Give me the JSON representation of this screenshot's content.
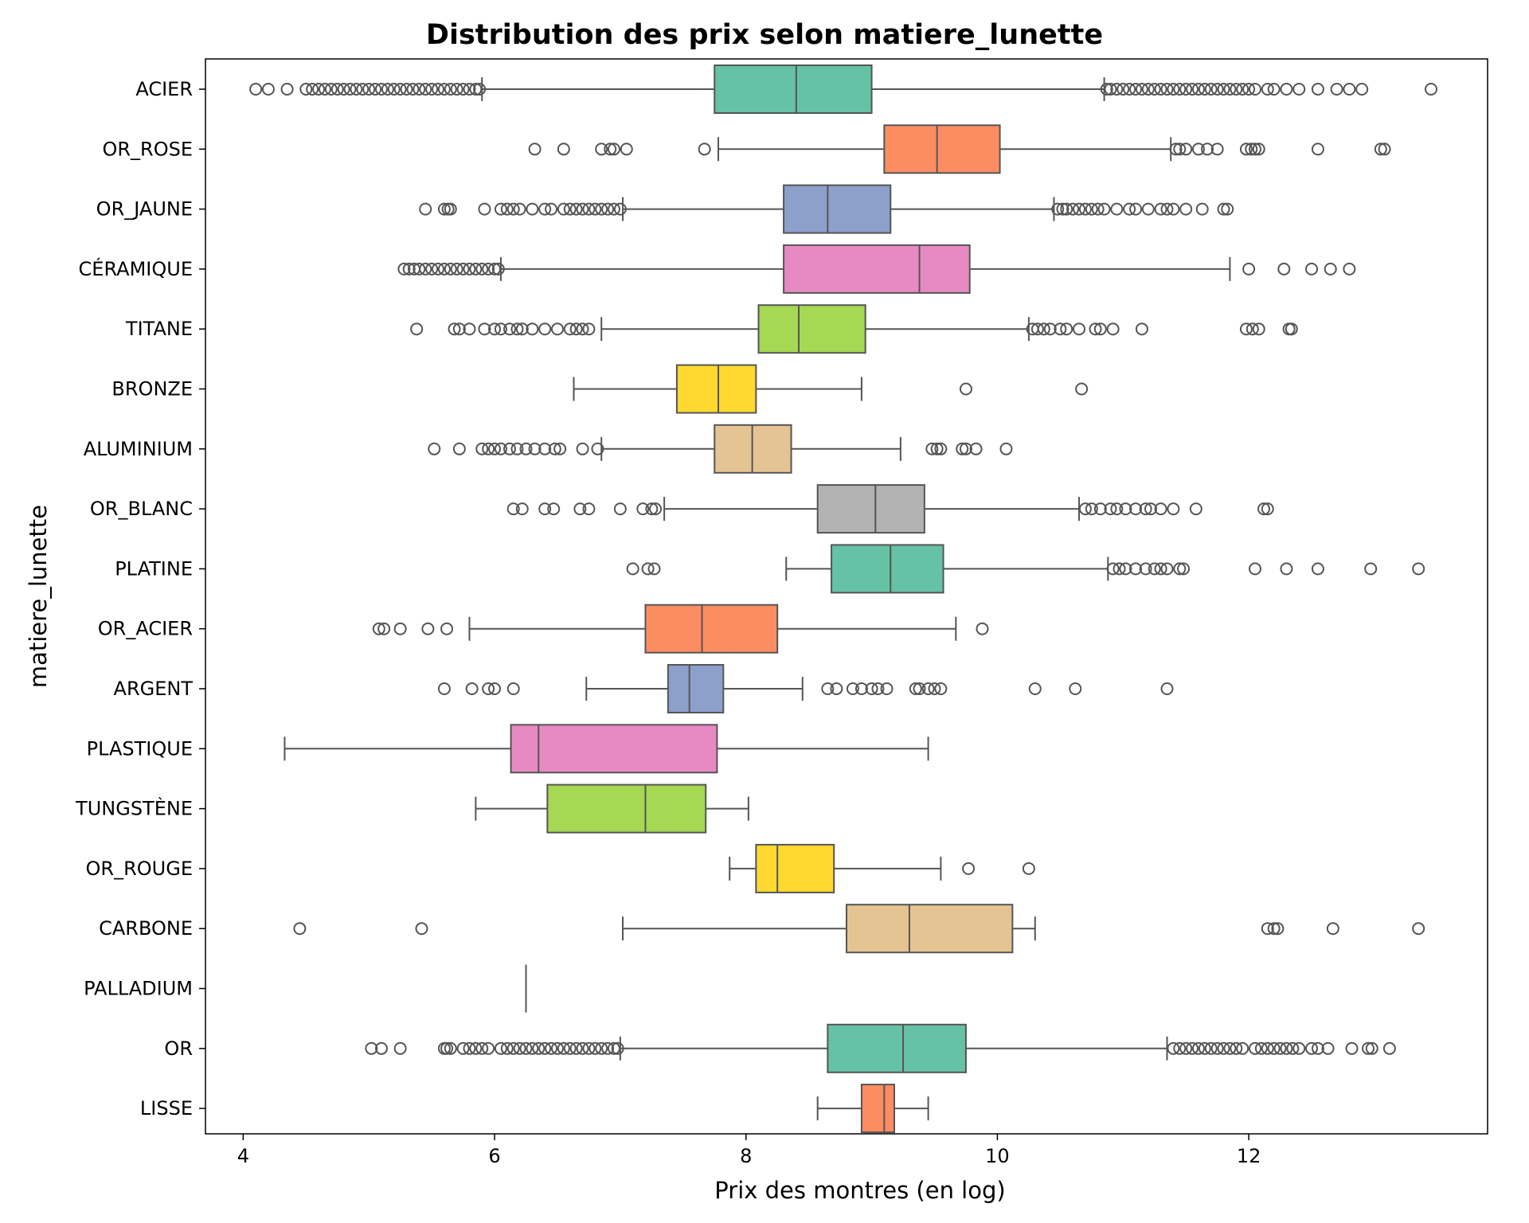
{
  "chart_data": {
    "type": "boxplot",
    "orientation": "horizontal",
    "title": "Distribution des prix selon matiere_lunette",
    "xlabel": "Prix des montres (en log)",
    "ylabel": "matiere_lunette",
    "xlim": [
      3.7,
      13.9
    ],
    "xticks": [
      4,
      6,
      8,
      10,
      12
    ],
    "grid": false,
    "series": [
      {
        "name": "ACIER",
        "color": "#66c2a5",
        "whisker_low": 5.9,
        "q1": 7.75,
        "median": 8.4,
        "q3": 9.0,
        "whisker_high": 10.85,
        "outliers": [
          4.1,
          4.2,
          4.35,
          4.5,
          4.55,
          4.6,
          4.65,
          4.7,
          4.75,
          4.8,
          4.85,
          4.9,
          4.95,
          5.0,
          5.05,
          5.1,
          5.15,
          5.2,
          5.25,
          5.3,
          5.35,
          5.4,
          5.45,
          5.5,
          5.55,
          5.6,
          5.65,
          5.7,
          5.75,
          5.8,
          5.85,
          5.88,
          10.87,
          10.9,
          10.95,
          11.0,
          11.05,
          11.1,
          11.15,
          11.2,
          11.25,
          11.3,
          11.35,
          11.4,
          11.45,
          11.5,
          11.55,
          11.6,
          11.65,
          11.7,
          11.75,
          11.8,
          11.85,
          11.9,
          11.95,
          12.0,
          12.05,
          12.15,
          12.2,
          12.3,
          12.4,
          12.55,
          12.7,
          12.8,
          12.9,
          13.45
        ]
      },
      {
        "name": "OR_ROSE",
        "color": "#fc8d62",
        "whisker_low": 7.78,
        "q1": 9.1,
        "median": 9.52,
        "q3": 10.02,
        "whisker_high": 11.38,
        "outliers": [
          6.32,
          6.55,
          6.85,
          6.92,
          6.95,
          7.05,
          7.67,
          11.42,
          11.45,
          11.5,
          11.6,
          11.67,
          11.75,
          11.98,
          12.02,
          12.05,
          12.08,
          12.55,
          13.05,
          13.08
        ]
      },
      {
        "name": "OR_JAUNE",
        "color": "#8da0cb",
        "whisker_low": 7.02,
        "q1": 8.3,
        "median": 8.65,
        "q3": 9.15,
        "whisker_high": 10.45,
        "outliers": [
          5.45,
          5.6,
          5.63,
          5.65,
          5.92,
          6.05,
          6.1,
          6.15,
          6.2,
          6.3,
          6.4,
          6.45,
          6.55,
          6.6,
          6.65,
          6.7,
          6.75,
          6.8,
          6.85,
          6.9,
          6.95,
          7.0,
          10.48,
          10.52,
          10.55,
          10.6,
          10.65,
          10.7,
          10.75,
          10.8,
          10.85,
          10.95,
          11.05,
          11.1,
          11.2,
          11.3,
          11.35,
          11.4,
          11.5,
          11.63,
          11.8,
          11.83
        ]
      },
      {
        "name": "CÉRAMIQUE",
        "color": "#e78ac3",
        "whisker_low": 6.05,
        "q1": 8.3,
        "median": 9.38,
        "q3": 9.78,
        "whisker_high": 11.85,
        "outliers": [
          5.28,
          5.32,
          5.36,
          5.4,
          5.45,
          5.5,
          5.55,
          5.6,
          5.65,
          5.7,
          5.75,
          5.8,
          5.85,
          5.9,
          5.95,
          6.0,
          6.03,
          12.0,
          12.28,
          12.5,
          12.65,
          12.8
        ]
      },
      {
        "name": "TITANE",
        "color": "#a6d854",
        "whisker_low": 6.85,
        "q1": 8.1,
        "median": 8.42,
        "q3": 8.95,
        "whisker_high": 10.25,
        "outliers": [
          5.38,
          5.68,
          5.72,
          5.8,
          5.92,
          6.0,
          6.05,
          6.12,
          6.18,
          6.22,
          6.3,
          6.4,
          6.5,
          6.6,
          6.65,
          6.7,
          6.75,
          10.28,
          10.32,
          10.37,
          10.42,
          10.5,
          10.55,
          10.65,
          10.78,
          10.82,
          10.92,
          11.15,
          11.98,
          12.03,
          12.08,
          12.32,
          12.34
        ]
      },
      {
        "name": "BRONZE",
        "color": "#ffd92f",
        "whisker_low": 6.63,
        "q1": 7.45,
        "median": 7.78,
        "q3": 8.08,
        "whisker_high": 8.92,
        "outliers": [
          9.75,
          10.67
        ]
      },
      {
        "name": "ALUMINIUM",
        "color": "#e5c494",
        "whisker_low": 6.85,
        "q1": 7.75,
        "median": 8.05,
        "q3": 8.36,
        "whisker_high": 9.23,
        "outliers": [
          5.52,
          5.72,
          5.9,
          5.95,
          6.0,
          6.05,
          6.12,
          6.18,
          6.25,
          6.32,
          6.4,
          6.48,
          6.52,
          6.7,
          6.82,
          9.48,
          9.52,
          9.55,
          9.72,
          9.75,
          9.83,
          10.07
        ]
      },
      {
        "name": "OR_BLANC",
        "color": "#b3b3b3",
        "whisker_low": 7.35,
        "q1": 8.57,
        "median": 9.03,
        "q3": 9.42,
        "whisker_high": 10.65,
        "outliers": [
          6.15,
          6.22,
          6.4,
          6.47,
          6.68,
          6.75,
          7.0,
          7.18,
          7.25,
          7.28,
          10.7,
          10.75,
          10.82,
          10.9,
          10.95,
          11.02,
          11.1,
          11.18,
          11.22,
          11.3,
          11.4,
          11.58,
          12.12,
          12.15
        ]
      },
      {
        "name": "PLATINE",
        "color": "#66c2a5",
        "whisker_low": 8.32,
        "q1": 8.68,
        "median": 9.15,
        "q3": 9.57,
        "whisker_high": 10.88,
        "outliers": [
          7.1,
          7.22,
          7.27,
          10.92,
          10.97,
          11.02,
          11.1,
          11.18,
          11.25,
          11.3,
          11.35,
          11.45,
          11.48,
          12.05,
          12.3,
          12.55,
          12.97,
          13.35
        ]
      },
      {
        "name": "OR_ACIER",
        "color": "#fc8d62",
        "whisker_low": 5.8,
        "q1": 7.2,
        "median": 7.65,
        "q3": 8.25,
        "whisker_high": 9.67,
        "outliers": [
          5.08,
          5.12,
          5.25,
          5.47,
          5.62,
          9.88
        ]
      },
      {
        "name": "ARGENT",
        "color": "#8da0cb",
        "whisker_low": 6.73,
        "q1": 7.38,
        "median": 7.55,
        "q3": 7.82,
        "whisker_high": 8.45,
        "outliers": [
          5.6,
          5.82,
          5.95,
          6.0,
          6.15,
          8.65,
          8.72,
          8.85,
          8.92,
          9.0,
          9.05,
          9.12,
          9.35,
          9.38,
          9.45,
          9.5,
          9.55,
          10.3,
          10.62,
          11.35
        ]
      },
      {
        "name": "PLASTIQUE",
        "color": "#e78ac3",
        "whisker_low": 4.33,
        "q1": 6.13,
        "median": 6.35,
        "q3": 7.77,
        "whisker_high": 9.45,
        "outliers": []
      },
      {
        "name": "TUNGSTÈNE",
        "color": "#a6d854",
        "whisker_low": 5.85,
        "q1": 6.42,
        "median": 7.2,
        "q3": 7.68,
        "whisker_high": 8.02,
        "outliers": []
      },
      {
        "name": "OR_ROUGE",
        "color": "#ffd92f",
        "whisker_low": 7.87,
        "q1": 8.08,
        "median": 8.25,
        "q3": 8.7,
        "whisker_high": 9.55,
        "outliers": [
          9.77,
          10.25
        ]
      },
      {
        "name": "CARBONE",
        "color": "#e5c494",
        "whisker_low": 7.02,
        "q1": 8.8,
        "median": 9.3,
        "q3": 10.12,
        "whisker_high": 10.3,
        "outliers": [
          4.45,
          5.42,
          12.15,
          12.2,
          12.23,
          12.67,
          13.35
        ]
      },
      {
        "name": "PALLADIUM",
        "color": "#b3b3b3",
        "whisker_low": 6.25,
        "q1": 6.25,
        "median": 6.25,
        "q3": 6.25,
        "whisker_high": 6.25,
        "outliers": []
      },
      {
        "name": "OR",
        "color": "#66c2a5",
        "whisker_low": 7.0,
        "q1": 8.65,
        "median": 9.25,
        "q3": 9.75,
        "whisker_high": 11.35,
        "outliers": [
          5.02,
          5.1,
          5.25,
          5.6,
          5.62,
          5.65,
          5.75,
          5.8,
          5.85,
          5.9,
          5.95,
          6.05,
          6.1,
          6.15,
          6.2,
          6.25,
          6.3,
          6.35,
          6.4,
          6.45,
          6.5,
          6.55,
          6.6,
          6.65,
          6.7,
          6.75,
          6.8,
          6.85,
          6.9,
          6.95,
          6.98,
          11.4,
          11.45,
          11.5,
          11.55,
          11.6,
          11.65,
          11.7,
          11.75,
          11.8,
          11.85,
          11.9,
          11.95,
          12.05,
          12.1,
          12.15,
          12.2,
          12.25,
          12.3,
          12.35,
          12.4,
          12.5,
          12.55,
          12.63,
          12.82,
          12.95,
          12.98,
          13.12
        ]
      },
      {
        "name": "LISSE",
        "color": "#fc8d62",
        "whisker_low": 8.57,
        "q1": 8.92,
        "median": 9.1,
        "q3": 9.18,
        "whisker_high": 9.45,
        "outliers": []
      }
    ]
  }
}
